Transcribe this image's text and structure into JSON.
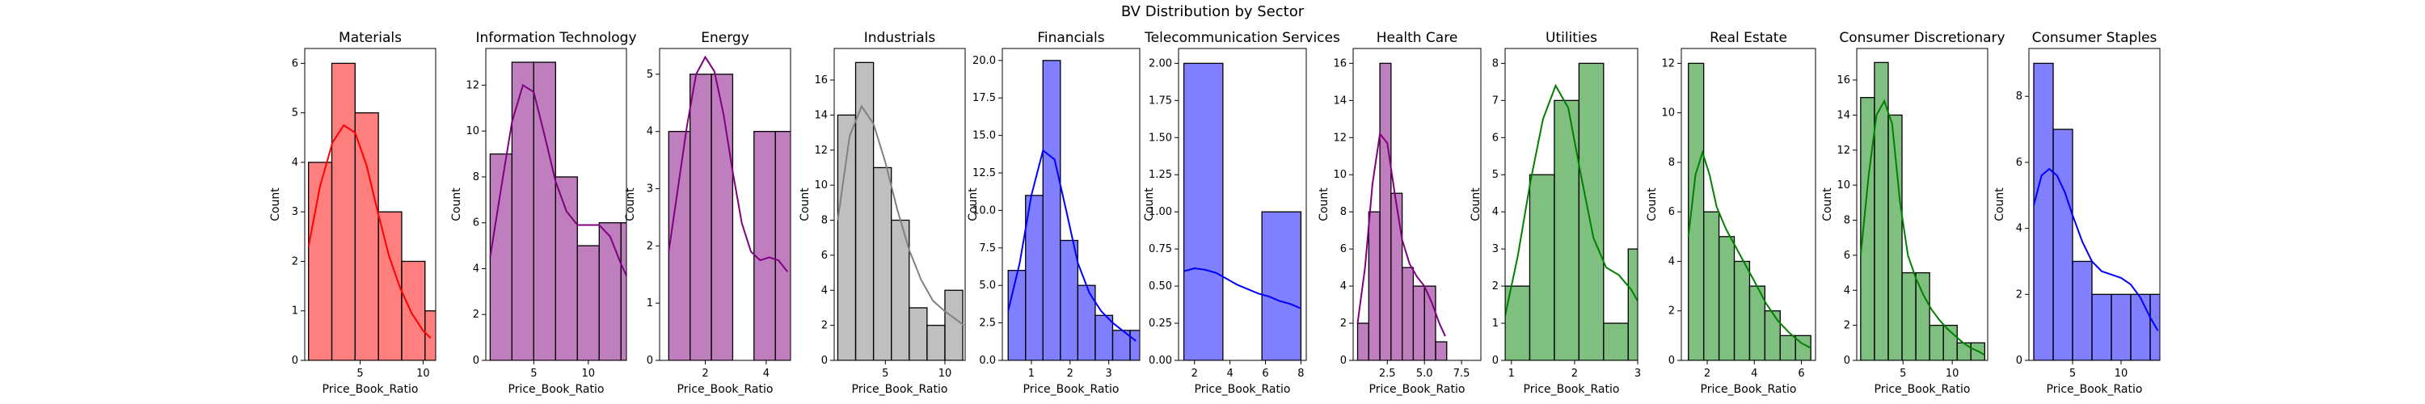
{
  "figure": {
    "title": "BV Distribution by Sector"
  },
  "chart_data": [
    {
      "type": "bar",
      "title": "Materials",
      "xlabel": "Price_Book_Ratio",
      "ylabel": "Count",
      "color": "#ff0000",
      "xlim": [
        0.6,
        11.0
      ],
      "ylim": [
        0,
        6.3
      ],
      "xticks": [
        5,
        10
      ],
      "yticks": [
        0,
        1,
        2,
        3,
        4,
        5,
        6
      ],
      "bins": [
        [
          0.9,
          2.75,
          4
        ],
        [
          2.75,
          4.6,
          6
        ],
        [
          4.6,
          6.45,
          5
        ],
        [
          6.45,
          8.3,
          3
        ],
        [
          8.3,
          10.15,
          2
        ],
        [
          10.15,
          12.0,
          1
        ]
      ],
      "kde": [
        [
          0.9,
          2.3
        ],
        [
          1.8,
          3.5
        ],
        [
          2.8,
          4.4
        ],
        [
          3.7,
          4.75
        ],
        [
          4.6,
          4.6
        ],
        [
          5.5,
          3.95
        ],
        [
          6.4,
          3.0
        ],
        [
          7.3,
          2.1
        ],
        [
          8.2,
          1.45
        ],
        [
          9.1,
          0.95
        ],
        [
          10.0,
          0.6
        ],
        [
          10.6,
          0.45
        ]
      ]
    },
    {
      "type": "bar",
      "title": "Information Technology",
      "xlabel": "Price_Book_Ratio",
      "ylabel": "Count",
      "color": "#800080",
      "xlim": [
        0.6,
        13.5
      ],
      "ylim": [
        0,
        13.6
      ],
      "xticks": [
        5,
        10
      ],
      "yticks": [
        0,
        2,
        4,
        6,
        8,
        10,
        12
      ],
      "bins": [
        [
          1.0,
          3.0,
          9
        ],
        [
          3.0,
          5.0,
          13
        ],
        [
          5.0,
          7.0,
          13
        ],
        [
          7.0,
          9.0,
          8
        ],
        [
          9.0,
          11.0,
          5
        ],
        [
          11.0,
          13.0,
          6
        ],
        [
          13.0,
          15.0,
          6
        ]
      ],
      "kde": [
        [
          1.0,
          4.5
        ],
        [
          2.0,
          7.5
        ],
        [
          3.0,
          10.4
        ],
        [
          4.0,
          12.0
        ],
        [
          5.0,
          11.7
        ],
        [
          6.0,
          9.8
        ],
        [
          7.0,
          7.8
        ],
        [
          8.0,
          6.5
        ],
        [
          9.0,
          5.9
        ],
        [
          10.0,
          5.9
        ],
        [
          11.0,
          5.9
        ],
        [
          12.0,
          5.4
        ],
        [
          13.0,
          4.2
        ],
        [
          13.8,
          3.4
        ]
      ]
    },
    {
      "type": "bar",
      "title": "Energy",
      "xlabel": "Price_Book_Ratio",
      "ylabel": "Count",
      "color": "#800080",
      "xlim": [
        0.5,
        4.8
      ],
      "ylim": [
        0,
        5.45
      ],
      "xticks": [
        2,
        4
      ],
      "yticks": [
        0,
        1,
        2,
        3,
        4,
        5
      ],
      "bins": [
        [
          0.8,
          1.5,
          4
        ],
        [
          1.5,
          2.2,
          5
        ],
        [
          2.2,
          2.9,
          5
        ],
        [
          2.9,
          3.6,
          0
        ],
        [
          3.6,
          4.3,
          4
        ],
        [
          4.3,
          5.0,
          4
        ]
      ],
      "kde": [
        [
          0.8,
          1.9
        ],
        [
          1.1,
          3.0
        ],
        [
          1.4,
          4.1
        ],
        [
          1.7,
          5.0
        ],
        [
          2.0,
          5.3
        ],
        [
          2.3,
          5.05
        ],
        [
          2.6,
          4.3
        ],
        [
          2.9,
          3.3
        ],
        [
          3.2,
          2.4
        ],
        [
          3.5,
          1.9
        ],
        [
          3.8,
          1.75
        ],
        [
          4.1,
          1.8
        ],
        [
          4.4,
          1.75
        ],
        [
          4.7,
          1.55
        ]
      ]
    },
    {
      "type": "bar",
      "title": "Industrials",
      "xlabel": "Price_Book_Ratio",
      "ylabel": "Count",
      "color": "#808080",
      "xlim": [
        0.7,
        11.7
      ],
      "ylim": [
        0,
        17.8
      ],
      "xticks": [
        5,
        10
      ],
      "yticks": [
        0,
        2,
        4,
        6,
        8,
        10,
        12,
        14,
        16
      ],
      "bins": [
        [
          1.0,
          2.5,
          14
        ],
        [
          2.5,
          4.0,
          17
        ],
        [
          4.0,
          5.5,
          11
        ],
        [
          5.5,
          7.0,
          8
        ],
        [
          7.0,
          8.5,
          3
        ],
        [
          8.5,
          10.0,
          2
        ],
        [
          10.0,
          11.5,
          4
        ]
      ],
      "kde": [
        [
          1.0,
          8.0
        ],
        [
          2.0,
          12.8
        ],
        [
          3.0,
          14.5
        ],
        [
          4.0,
          13.5
        ],
        [
          5.0,
          11.3
        ],
        [
          6.0,
          8.6
        ],
        [
          7.0,
          6.3
        ],
        [
          8.0,
          4.6
        ],
        [
          9.0,
          3.4
        ],
        [
          10.0,
          2.8
        ],
        [
          11.0,
          2.3
        ],
        [
          11.6,
          2.0
        ]
      ]
    },
    {
      "type": "bar",
      "title": "Financials",
      "xlabel": "Price_Book_Ratio",
      "ylabel": "Count",
      "color": "#0000ff",
      "xlim": [
        0.25,
        3.8
      ],
      "ylim": [
        0,
        20.8
      ],
      "xticks": [
        1,
        2,
        3
      ],
      "yticks": [
        0.0,
        2.5,
        5.0,
        7.5,
        10.0,
        12.5,
        15.0,
        17.5,
        20.0
      ],
      "ytick_labels": [
        "0.0",
        "2.5",
        "5.0",
        "7.5",
        "10.0",
        "12.5",
        "15.0",
        "17.5",
        "20.0"
      ],
      "bins": [
        [
          0.4,
          0.85,
          6
        ],
        [
          0.85,
          1.3,
          11
        ],
        [
          1.3,
          1.75,
          20
        ],
        [
          1.75,
          2.2,
          8
        ],
        [
          2.2,
          2.65,
          5
        ],
        [
          2.65,
          3.1,
          3
        ],
        [
          3.1,
          3.55,
          2
        ],
        [
          3.55,
          4.0,
          2
        ]
      ],
      "kde": [
        [
          0.4,
          3.3
        ],
        [
          0.7,
          6.5
        ],
        [
          1.0,
          11.0
        ],
        [
          1.3,
          14.0
        ],
        [
          1.6,
          13.4
        ],
        [
          1.9,
          10.0
        ],
        [
          2.2,
          6.5
        ],
        [
          2.5,
          4.5
        ],
        [
          2.8,
          3.3
        ],
        [
          3.1,
          2.5
        ],
        [
          3.4,
          1.9
        ],
        [
          3.7,
          1.3
        ]
      ]
    },
    {
      "type": "bar",
      "title": "Telecommunication Services",
      "xlabel": "Price_Book_Ratio",
      "ylabel": "Count",
      "color": "#0000ff",
      "xlim": [
        1.1,
        8.3
      ],
      "ylim": [
        0,
        2.1
      ],
      "xticks": [
        2,
        4,
        6,
        8
      ],
      "yticks": [
        0.0,
        0.25,
        0.5,
        0.75,
        1.0,
        1.25,
        1.5,
        1.75,
        2.0
      ],
      "ytick_labels": [
        "0.00",
        "0.25",
        "0.50",
        "0.75",
        "1.00",
        "1.25",
        "1.50",
        "1.75",
        "2.00"
      ],
      "bins": [
        [
          1.4,
          3.6,
          2
        ],
        [
          3.6,
          5.8,
          0
        ],
        [
          5.8,
          8.0,
          1
        ]
      ],
      "kde": [
        [
          1.4,
          0.6
        ],
        [
          2.0,
          0.62
        ],
        [
          2.6,
          0.61
        ],
        [
          3.2,
          0.59
        ],
        [
          3.8,
          0.55
        ],
        [
          4.4,
          0.51
        ],
        [
          5.0,
          0.48
        ],
        [
          5.6,
          0.45
        ],
        [
          6.2,
          0.43
        ],
        [
          6.8,
          0.4
        ],
        [
          7.4,
          0.38
        ],
        [
          8.0,
          0.35
        ]
      ]
    },
    {
      "type": "bar",
      "title": "Health Care",
      "xlabel": "Price_Book_Ratio",
      "ylabel": "Count",
      "color": "#800080",
      "xlim": [
        0.2,
        8.8
      ],
      "ylim": [
        0,
        16.8
      ],
      "xticks": [
        2.5,
        5.0,
        7.5
      ],
      "yticks": [
        0,
        2,
        4,
        6,
        8,
        10,
        12,
        14,
        16
      ],
      "xtick_labels": [
        "2.5",
        "5.0",
        "7.5"
      ],
      "bins": [
        [
          0.5,
          1.25,
          2
        ],
        [
          1.25,
          2.0,
          8
        ],
        [
          2.0,
          2.75,
          16
        ],
        [
          2.75,
          3.5,
          9
        ],
        [
          3.5,
          4.25,
          5
        ],
        [
          4.25,
          5.0,
          4
        ],
        [
          5.0,
          5.75,
          4
        ],
        [
          5.75,
          6.5,
          1
        ]
      ],
      "kde": [
        [
          0.5,
          2.0
        ],
        [
          1.0,
          5.0
        ],
        [
          1.5,
          9.5
        ],
        [
          2.0,
          12.2
        ],
        [
          2.5,
          11.7
        ],
        [
          3.0,
          9.0
        ],
        [
          3.5,
          6.5
        ],
        [
          4.0,
          5.2
        ],
        [
          4.5,
          4.5
        ],
        [
          5.0,
          4.0
        ],
        [
          5.5,
          3.1
        ],
        [
          6.0,
          2.0
        ],
        [
          6.4,
          1.3
        ]
      ]
    },
    {
      "type": "bar",
      "title": "Utilities",
      "xlabel": "Price_Book_Ratio",
      "ylabel": "Count",
      "color": "#008000",
      "xlim": [
        0.9,
        3.0
      ],
      "ylim": [
        0,
        8.4
      ],
      "xticks": [
        1,
        2,
        3
      ],
      "yticks": [
        0,
        1,
        2,
        3,
        4,
        5,
        6,
        7,
        8
      ],
      "bins": [
        [
          0.9,
          1.29,
          2
        ],
        [
          1.29,
          1.68,
          5
        ],
        [
          1.68,
          2.07,
          7
        ],
        [
          2.07,
          2.46,
          8
        ],
        [
          2.46,
          2.85,
          1
        ],
        [
          2.85,
          3.24,
          3
        ]
      ],
      "kde": [
        [
          0.9,
          1.2
        ],
        [
          1.1,
          2.8
        ],
        [
          1.3,
          4.8
        ],
        [
          1.5,
          6.5
        ],
        [
          1.7,
          7.4
        ],
        [
          1.9,
          6.8
        ],
        [
          2.1,
          5.0
        ],
        [
          2.3,
          3.3
        ],
        [
          2.5,
          2.5
        ],
        [
          2.7,
          2.3
        ],
        [
          2.9,
          1.9
        ],
        [
          3.0,
          1.6
        ]
      ]
    },
    {
      "type": "bar",
      "title": "Real Estate",
      "xlabel": "Price_Book_Ratio",
      "ylabel": "Count",
      "color": "#008000",
      "xlim": [
        0.9,
        6.6
      ],
      "ylim": [
        0,
        12.6
      ],
      "xticks": [
        2,
        4,
        6
      ],
      "yticks": [
        0,
        2,
        4,
        6,
        8,
        10,
        12
      ],
      "bins": [
        [
          1.2,
          1.85,
          12
        ],
        [
          1.85,
          2.5,
          6
        ],
        [
          2.5,
          3.15,
          5
        ],
        [
          3.15,
          3.8,
          4
        ],
        [
          3.8,
          4.45,
          3
        ],
        [
          4.45,
          5.1,
          2
        ],
        [
          5.1,
          5.75,
          1
        ],
        [
          5.75,
          6.4,
          1
        ]
      ],
      "kde": [
        [
          1.2,
          5.0
        ],
        [
          1.5,
          7.5
        ],
        [
          1.8,
          8.4
        ],
        [
          2.1,
          7.5
        ],
        [
          2.4,
          6.2
        ],
        [
          2.8,
          5.3
        ],
        [
          3.2,
          4.6
        ],
        [
          3.6,
          3.9
        ],
        [
          4.0,
          3.2
        ],
        [
          4.5,
          2.3
        ],
        [
          5.0,
          1.6
        ],
        [
          5.5,
          1.1
        ],
        [
          6.0,
          0.7
        ],
        [
          6.4,
          0.5
        ]
      ]
    },
    {
      "type": "bar",
      "title": "Consumer Discretionary",
      "xlabel": "Price_Book_Ratio",
      "ylabel": "Count",
      "color": "#008000",
      "xlim": [
        0.3,
        13.6
      ],
      "ylim": [
        0,
        17.8
      ],
      "xticks": [
        5,
        10
      ],
      "yticks": [
        0,
        2,
        4,
        6,
        8,
        10,
        12,
        14,
        16
      ],
      "bins": [
        [
          0.7,
          2.1,
          15
        ],
        [
          2.1,
          3.5,
          17
        ],
        [
          3.5,
          4.9,
          14
        ],
        [
          4.9,
          6.3,
          5
        ],
        [
          6.3,
          7.7,
          5
        ],
        [
          7.7,
          9.1,
          2
        ],
        [
          9.1,
          10.5,
          2
        ],
        [
          10.5,
          11.9,
          1
        ],
        [
          11.9,
          13.3,
          1
        ]
      ],
      "kde": [
        [
          0.7,
          6.0
        ],
        [
          1.5,
          10.5
        ],
        [
          2.3,
          14.0
        ],
        [
          3.1,
          14.8
        ],
        [
          3.9,
          13.5
        ],
        [
          4.7,
          9.0
        ],
        [
          5.5,
          6.0
        ],
        [
          6.3,
          4.7
        ],
        [
          7.1,
          3.7
        ],
        [
          7.9,
          2.9
        ],
        [
          8.7,
          2.3
        ],
        [
          9.5,
          1.8
        ],
        [
          10.3,
          1.4
        ],
        [
          11.1,
          1.0
        ],
        [
          11.9,
          0.7
        ],
        [
          12.7,
          0.5
        ],
        [
          13.3,
          0.3
        ]
      ]
    },
    {
      "type": "bar",
      "title": "Consumer Staples",
      "xlabel": "Price_Book_Ratio",
      "ylabel": "Count",
      "color": "#0000ff",
      "xlim": [
        0.5,
        14.0
      ],
      "ylim": [
        0,
        9.45
      ],
      "xticks": [
        5,
        10
      ],
      "yticks": [
        0,
        2,
        4,
        6,
        8
      ],
      "bins": [
        [
          1.0,
          3.0,
          9
        ],
        [
          3.0,
          5.0,
          7
        ],
        [
          5.0,
          7.0,
          3
        ],
        [
          7.0,
          9.0,
          2
        ],
        [
          9.0,
          11.0,
          2
        ],
        [
          11.0,
          13.0,
          2
        ],
        [
          13.0,
          15.0,
          2
        ]
      ],
      "kde": [
        [
          1.0,
          4.7
        ],
        [
          1.8,
          5.6
        ],
        [
          2.6,
          5.8
        ],
        [
          3.4,
          5.6
        ],
        [
          4.2,
          5.1
        ],
        [
          5.0,
          4.4
        ],
        [
          6.0,
          3.6
        ],
        [
          7.0,
          3.0
        ],
        [
          8.0,
          2.7
        ],
        [
          9.0,
          2.6
        ],
        [
          10.0,
          2.5
        ],
        [
          11.0,
          2.3
        ],
        [
          12.0,
          1.9
        ],
        [
          13.0,
          1.3
        ],
        [
          13.8,
          0.9
        ]
      ]
    }
  ]
}
